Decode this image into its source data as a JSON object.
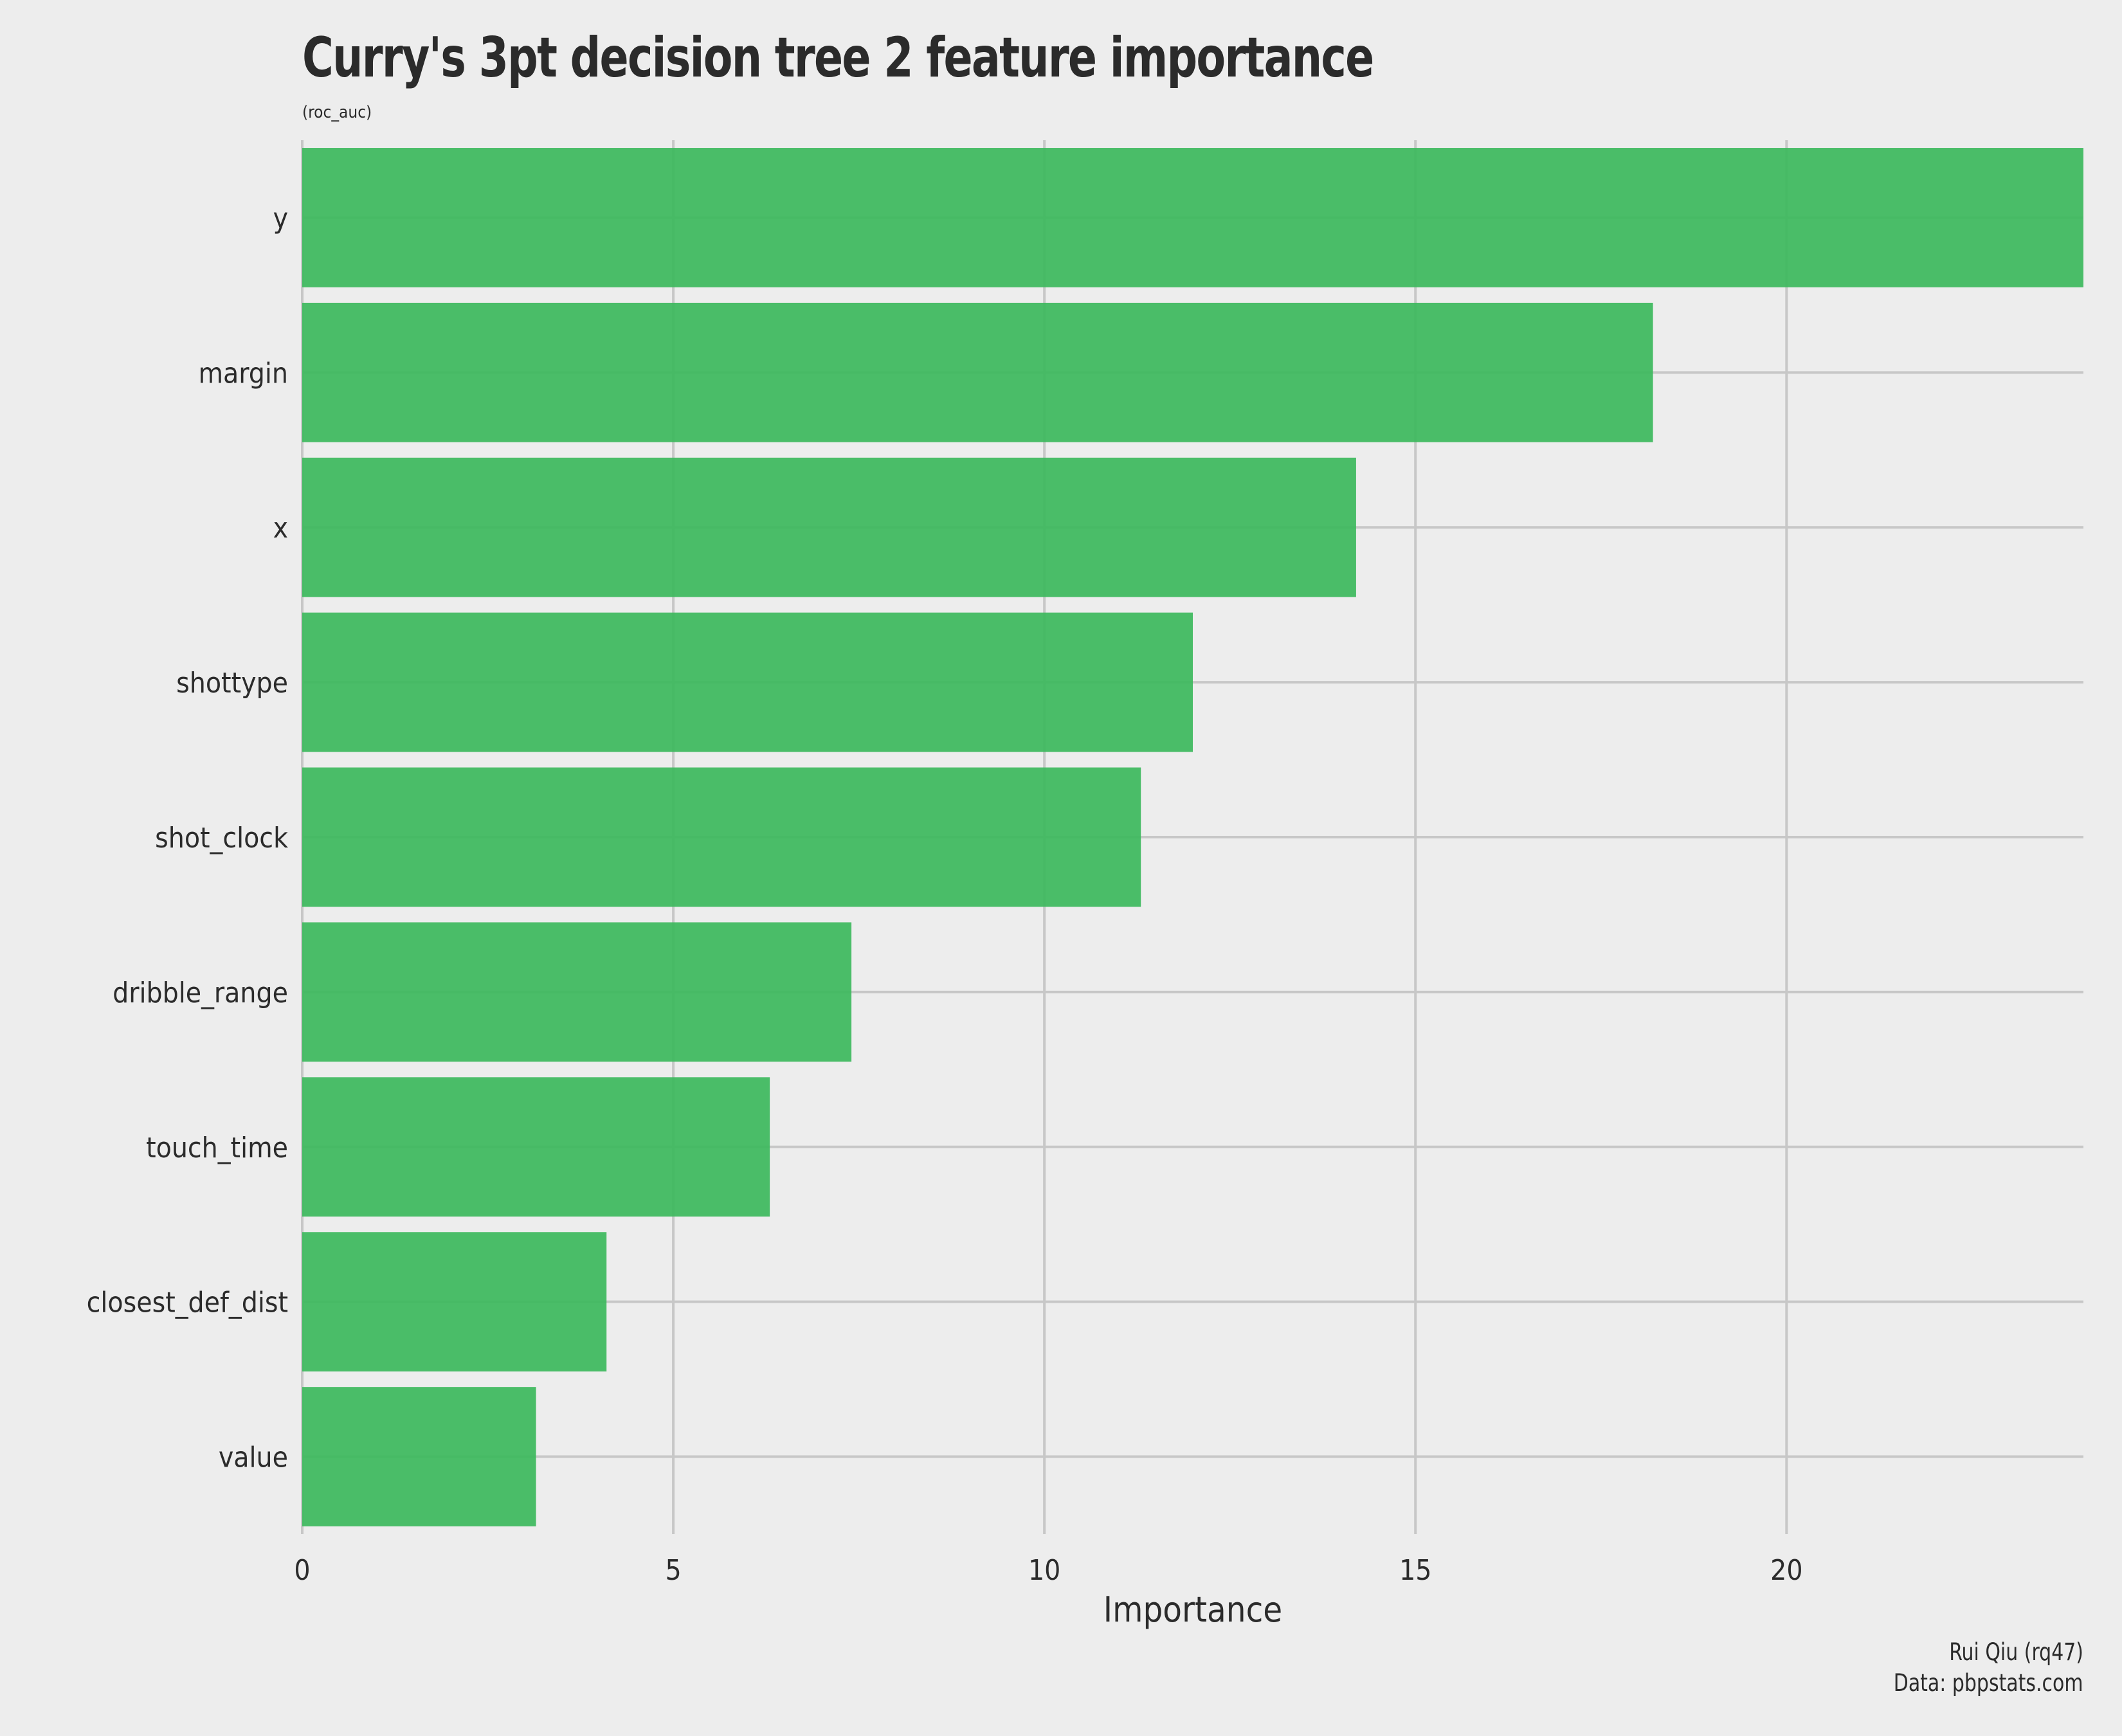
{
  "chart_data": {
    "type": "bar",
    "orientation": "horizontal",
    "title": "Curry's 3pt decision tree 2 feature importance",
    "subtitle": "(roc_auc)",
    "xlabel": "Importance",
    "ylabel": "",
    "categories": [
      "y",
      "margin",
      "x",
      "shottype",
      "shot_clock",
      "dribble_range",
      "touch_time",
      "closest_def_dist",
      "value"
    ],
    "values": [
      24.0,
      18.2,
      14.2,
      12.0,
      11.3,
      7.4,
      6.3,
      4.1,
      3.15
    ],
    "xlim": [
      0,
      24
    ],
    "xticks": [
      0,
      5,
      10,
      15,
      20
    ],
    "grid": true,
    "legend": "none",
    "bar_color": "#3cb95c",
    "caption": [
      "Rui Qiu (rq47)",
      "Data: pbpstats.com"
    ]
  }
}
